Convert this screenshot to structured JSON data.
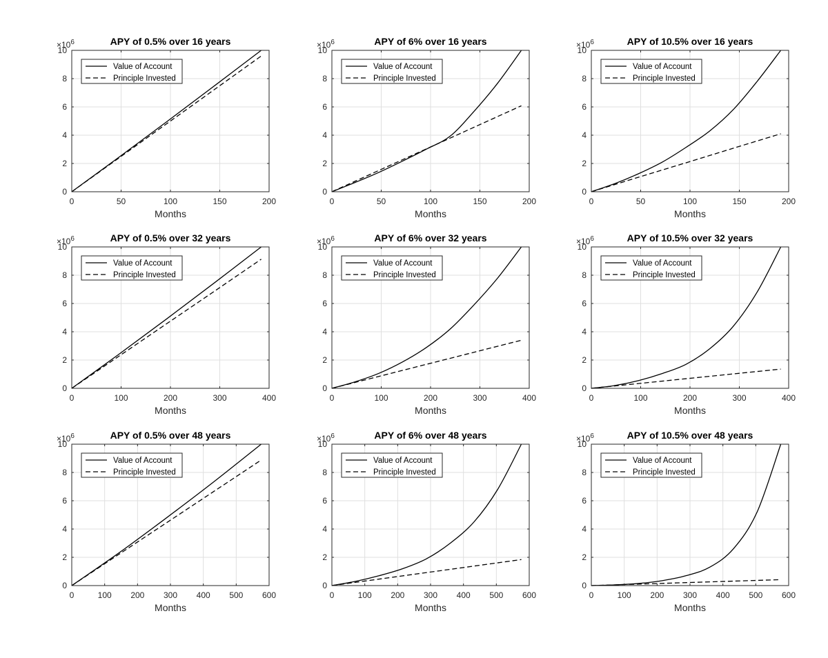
{
  "chart_data": [
    {
      "type": "line",
      "title": "APY of 0.5% over 16 years",
      "xlabel": "Months",
      "ylabel": "",
      "y_exponent_label": "×10^6",
      "xlim": [
        0,
        200
      ],
      "ylim": [
        0,
        10000000
      ],
      "xticks": [
        0,
        50,
        100,
        150,
        200
      ],
      "yticks": [
        0,
        2,
        4,
        6,
        8,
        10
      ],
      "grid": true,
      "legend_position": "top-left",
      "series": [
        {
          "name": "Value of Account",
          "style": "solid",
          "x": [
            0,
            48,
            96,
            144,
            192
          ],
          "values": [
            0,
            2450000,
            4940000,
            7460000,
            10020000
          ]
        },
        {
          "name": "Principle Invested",
          "style": "dashed",
          "x": [
            0,
            48,
            96,
            144,
            192
          ],
          "values": [
            0,
            2400000,
            4800000,
            7200000,
            9600000
          ]
        }
      ]
    },
    {
      "type": "line",
      "title": "APY of 6% over 16 years",
      "xlabel": "Months",
      "ylabel": "",
      "y_exponent_label": "×10^6",
      "xlim": [
        0,
        200
      ],
      "ylim": [
        0,
        10000000
      ],
      "xticks": [
        0,
        50,
        100,
        150,
        200
      ],
      "yticks": [
        0,
        2,
        4,
        6,
        8,
        10
      ],
      "grid": true,
      "legend_position": "top-left",
      "series": [
        {
          "name": "Value of Account",
          "style": "solid",
          "x": [
            0,
            24,
            48,
            72,
            96,
            120,
            144,
            168,
            192
          ],
          "values": [
            0,
            670000,
            1380000,
            2180000,
            3020000,
            3940000,
            5680000,
            7680000,
            10000000
          ]
        },
        {
          "name": "Principle Invested",
          "style": "dashed",
          "x": [
            0,
            48,
            96,
            144,
            192
          ],
          "values": [
            0,
            1520000,
            3040000,
            4560000,
            6080000
          ]
        }
      ]
    },
    {
      "type": "line",
      "title": "APY of 10.5% over 16 years",
      "xlabel": "Months",
      "ylabel": "",
      "y_exponent_label": "×10^6",
      "xlim": [
        0,
        200
      ],
      "ylim": [
        0,
        10000000
      ],
      "xticks": [
        0,
        50,
        100,
        150,
        200
      ],
      "yticks": [
        0,
        2,
        4,
        6,
        8,
        10
      ],
      "grid": true,
      "legend_position": "top-left",
      "series": [
        {
          "name": "Value of Account",
          "style": "solid",
          "x": [
            0,
            24,
            48,
            72,
            96,
            120,
            144,
            168,
            192
          ],
          "values": [
            0,
            580000,
            1280000,
            2100000,
            3140000,
            4300000,
            5820000,
            7800000,
            10000000
          ]
        },
        {
          "name": "Principle Invested",
          "style": "dashed",
          "x": [
            0,
            48,
            96,
            144,
            192
          ],
          "values": [
            0,
            1030000,
            2050000,
            3080000,
            4100000
          ]
        }
      ]
    },
    {
      "type": "line",
      "title": "APY of 0.5% over 32 years",
      "xlabel": "Months",
      "ylabel": "",
      "y_exponent_label": "×10^6",
      "xlim": [
        0,
        400
      ],
      "ylim": [
        0,
        10000000
      ],
      "xticks": [
        0,
        100,
        200,
        300,
        400
      ],
      "yticks": [
        0,
        2,
        4,
        6,
        8,
        10
      ],
      "grid": true,
      "legend_position": "top-left",
      "series": [
        {
          "name": "Value of Account",
          "style": "solid",
          "x": [
            0,
            96,
            192,
            288,
            384
          ],
          "values": [
            0,
            2420000,
            4900000,
            7430000,
            10000000
          ]
        },
        {
          "name": "Principle Invested",
          "style": "dashed",
          "x": [
            0,
            96,
            192,
            288,
            384
          ],
          "values": [
            0,
            2280000,
            4560000,
            6840000,
            9130000
          ]
        }
      ]
    },
    {
      "type": "line",
      "title": "APY of 6% over 32 years",
      "xlabel": "Months",
      "ylabel": "",
      "y_exponent_label": "×10^6",
      "xlim": [
        0,
        400
      ],
      "ylim": [
        0,
        10000000
      ],
      "xticks": [
        0,
        100,
        200,
        300,
        400
      ],
      "yticks": [
        0,
        2,
        4,
        6,
        8,
        10
      ],
      "grid": true,
      "legend_position": "top-left",
      "series": [
        {
          "name": "Value of Account",
          "style": "solid",
          "x": [
            0,
            48,
            96,
            144,
            192,
            240,
            288,
            336,
            384
          ],
          "values": [
            0,
            470000,
            1070000,
            1880000,
            2900000,
            4200000,
            5900000,
            7800000,
            10000000
          ]
        },
        {
          "name": "Principle Invested",
          "style": "dashed",
          "x": [
            0,
            96,
            192,
            288,
            384
          ],
          "values": [
            0,
            850000,
            1700000,
            2550000,
            3400000
          ]
        }
      ]
    },
    {
      "type": "line",
      "title": "APY of 10.5% over 32 years",
      "xlabel": "Months",
      "ylabel": "",
      "y_exponent_label": "×10^6",
      "xlim": [
        0,
        400
      ],
      "ylim": [
        0,
        10000000
      ],
      "xticks": [
        0,
        100,
        200,
        300,
        400
      ],
      "yticks": [
        0,
        2,
        4,
        6,
        8,
        10
      ],
      "grid": true,
      "legend_position": "top-left",
      "series": [
        {
          "name": "Value of Account",
          "style": "solid",
          "x": [
            0,
            48,
            96,
            144,
            192,
            240,
            288,
            336,
            384
          ],
          "values": [
            0,
            200000,
            550000,
            1050000,
            1700000,
            2800000,
            4400000,
            6800000,
            10000000
          ]
        },
        {
          "name": "Principle Invested",
          "style": "dashed",
          "x": [
            0,
            96,
            192,
            288,
            384
          ],
          "values": [
            0,
            340000,
            680000,
            1020000,
            1360000
          ]
        }
      ]
    },
    {
      "type": "line",
      "title": "APY of 0.5% over 48 years",
      "xlabel": "Months",
      "ylabel": "",
      "y_exponent_label": "×10^6",
      "xlim": [
        0,
        600
      ],
      "ylim": [
        0,
        10000000
      ],
      "xticks": [
        0,
        100,
        200,
        300,
        400,
        500,
        600
      ],
      "yticks": [
        0,
        2,
        4,
        6,
        8,
        10
      ],
      "grid": true,
      "legend_position": "top-left",
      "series": [
        {
          "name": "Value of Account",
          "style": "solid",
          "x": [
            0,
            144,
            288,
            432,
            576
          ],
          "values": [
            0,
            2320000,
            4790000,
            7340000,
            10000000
          ]
        },
        {
          "name": "Principle Invested",
          "style": "dashed",
          "x": [
            0,
            144,
            288,
            432,
            576
          ],
          "values": [
            0,
            2220000,
            4440000,
            6660000,
            8880000
          ]
        }
      ]
    },
    {
      "type": "line",
      "title": "APY of 6% over 48 years",
      "xlabel": "Months",
      "ylabel": "",
      "y_exponent_label": "×10^6",
      "xlim": [
        0,
        600
      ],
      "ylim": [
        0,
        10000000
      ],
      "xticks": [
        0,
        100,
        200,
        300,
        400,
        500,
        600
      ],
      "yticks": [
        0,
        2,
        4,
        6,
        8,
        10
      ],
      "grid": true,
      "legend_position": "top-left",
      "series": [
        {
          "name": "Value of Account",
          "style": "solid",
          "x": [
            0,
            72,
            144,
            216,
            288,
            360,
            432,
            504,
            576
          ],
          "values": [
            0,
            300000,
            700000,
            1200000,
            1900000,
            3000000,
            4500000,
            6800000,
            10000000
          ]
        },
        {
          "name": "Principle Invested",
          "style": "dashed",
          "x": [
            0,
            144,
            288,
            432,
            576
          ],
          "values": [
            0,
            460000,
            920000,
            1380000,
            1840000
          ]
        }
      ]
    },
    {
      "type": "line",
      "title": "APY of 10.5% over 48 years",
      "xlabel": "Months",
      "ylabel": "",
      "y_exponent_label": "×10^6",
      "xlim": [
        0,
        600
      ],
      "ylim": [
        0,
        10000000
      ],
      "xticks": [
        0,
        100,
        200,
        300,
        400,
        500,
        600
      ],
      "yticks": [
        0,
        2,
        4,
        6,
        8,
        10
      ],
      "grid": true,
      "legend_position": "top-left",
      "series": [
        {
          "name": "Value of Account",
          "style": "solid",
          "x": [
            0,
            72,
            144,
            216,
            288,
            360,
            432,
            504,
            576
          ],
          "values": [
            0,
            50000,
            150000,
            350000,
            700000,
            1300000,
            2600000,
            5200000,
            10000000
          ]
        },
        {
          "name": "Principle Invested",
          "style": "dashed",
          "x": [
            0,
            144,
            288,
            432,
            576
          ],
          "values": [
            0,
            105000,
            210000,
            315000,
            420000
          ]
        }
      ]
    }
  ]
}
